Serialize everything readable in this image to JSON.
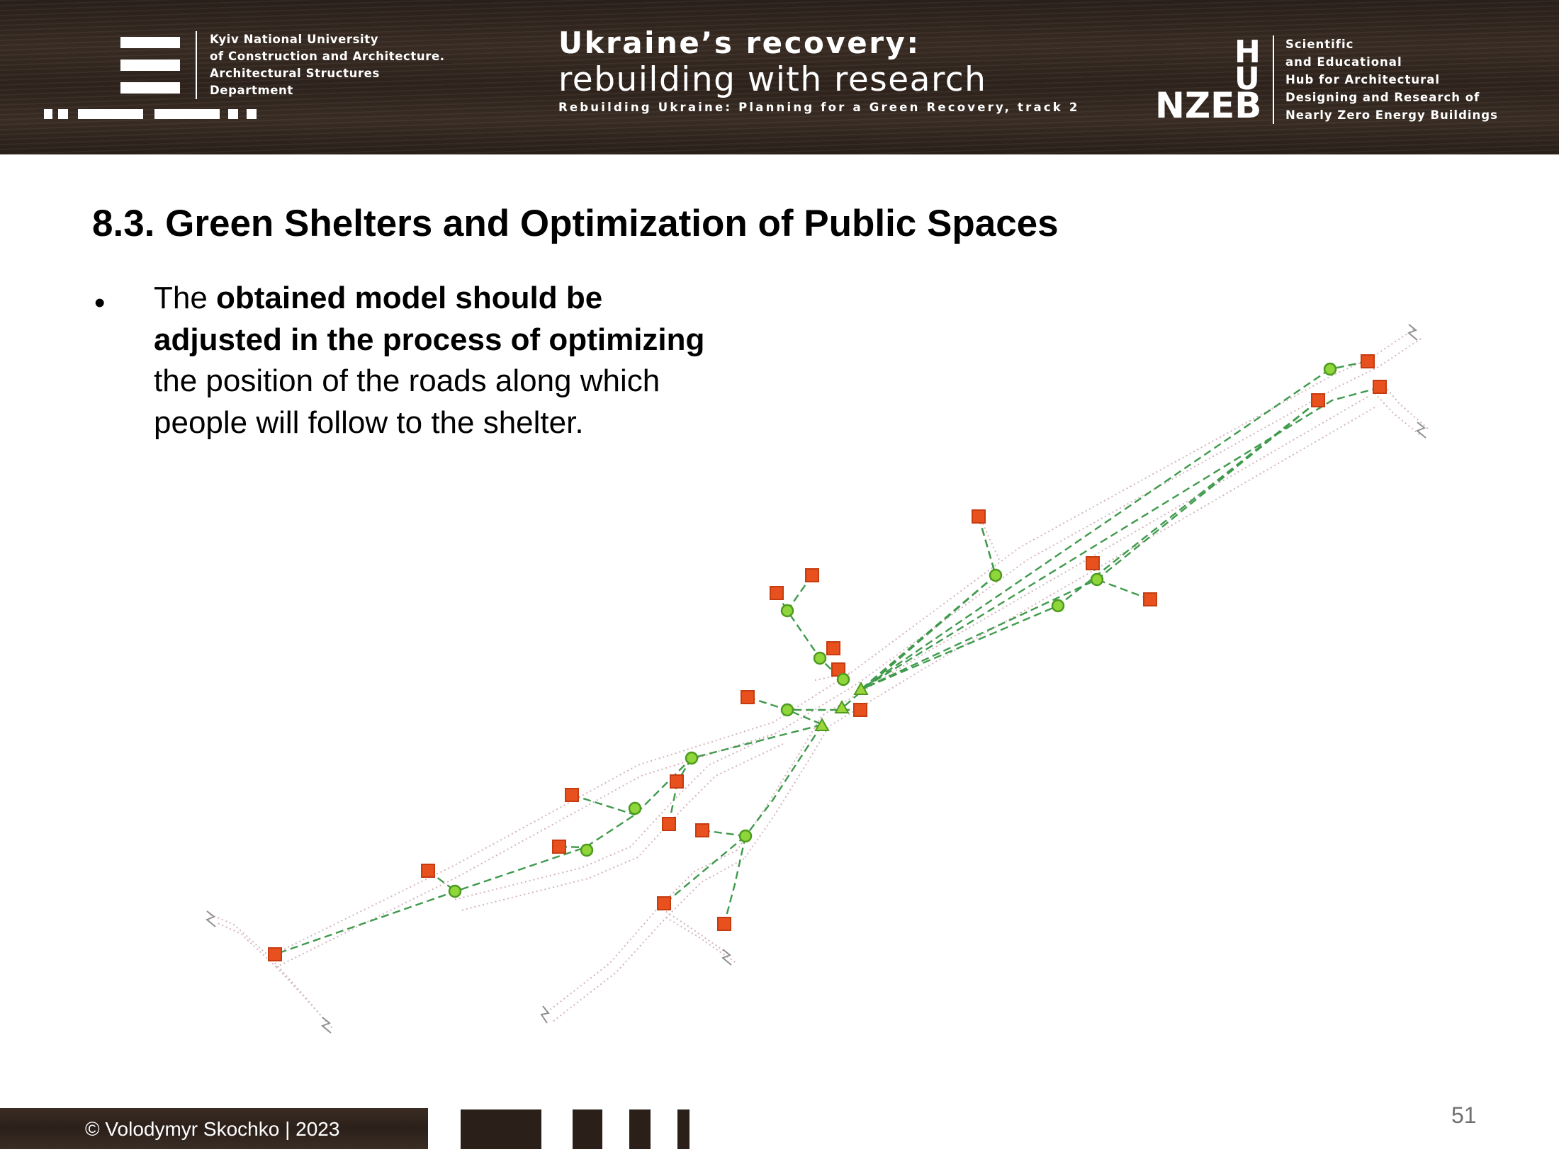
{
  "header": {
    "university_lines": [
      "Kyiv National University",
      "of Construction and Architecture.",
      "Architectural Structures",
      "Department"
    ],
    "title_line1": "Ukraine’s recovery:",
    "title_line2": "rebuilding with research",
    "title_line3": "Rebuilding Ukraine: Planning for a Green Recovery, track 2",
    "hub_letters": [
      "H",
      "U",
      "NZEB"
    ],
    "hub_lines": [
      "Scientific",
      "and Educational",
      "Hub for Architectural",
      "Designing and Research of",
      "Nearly Zero Energy Buildings"
    ]
  },
  "slide": {
    "title": "8.3. Green Shelters and Optimization of Public Spaces",
    "bullet_symbol": "•",
    "bullet_parts": [
      {
        "text": "The ",
        "bold": false
      },
      {
        "text": "obtained model should be adjusted in the process of optimizing",
        "bold": true
      },
      {
        "text": " the position of the roads along which people will follow to the shelter.",
        "bold": false
      }
    ]
  },
  "diagram": {
    "colors": {
      "building": "#e8501e",
      "building_border": "#c63c10",
      "node": "#8fd63a",
      "node_border": "#4e9a20",
      "shelter": "#9ad63a",
      "route": "#3a9a4a",
      "road": "#d8b8c0"
    },
    "legend": []
  },
  "footer": {
    "copyright": "© Volodymyr Skochko | 2023",
    "page_number": "51"
  }
}
